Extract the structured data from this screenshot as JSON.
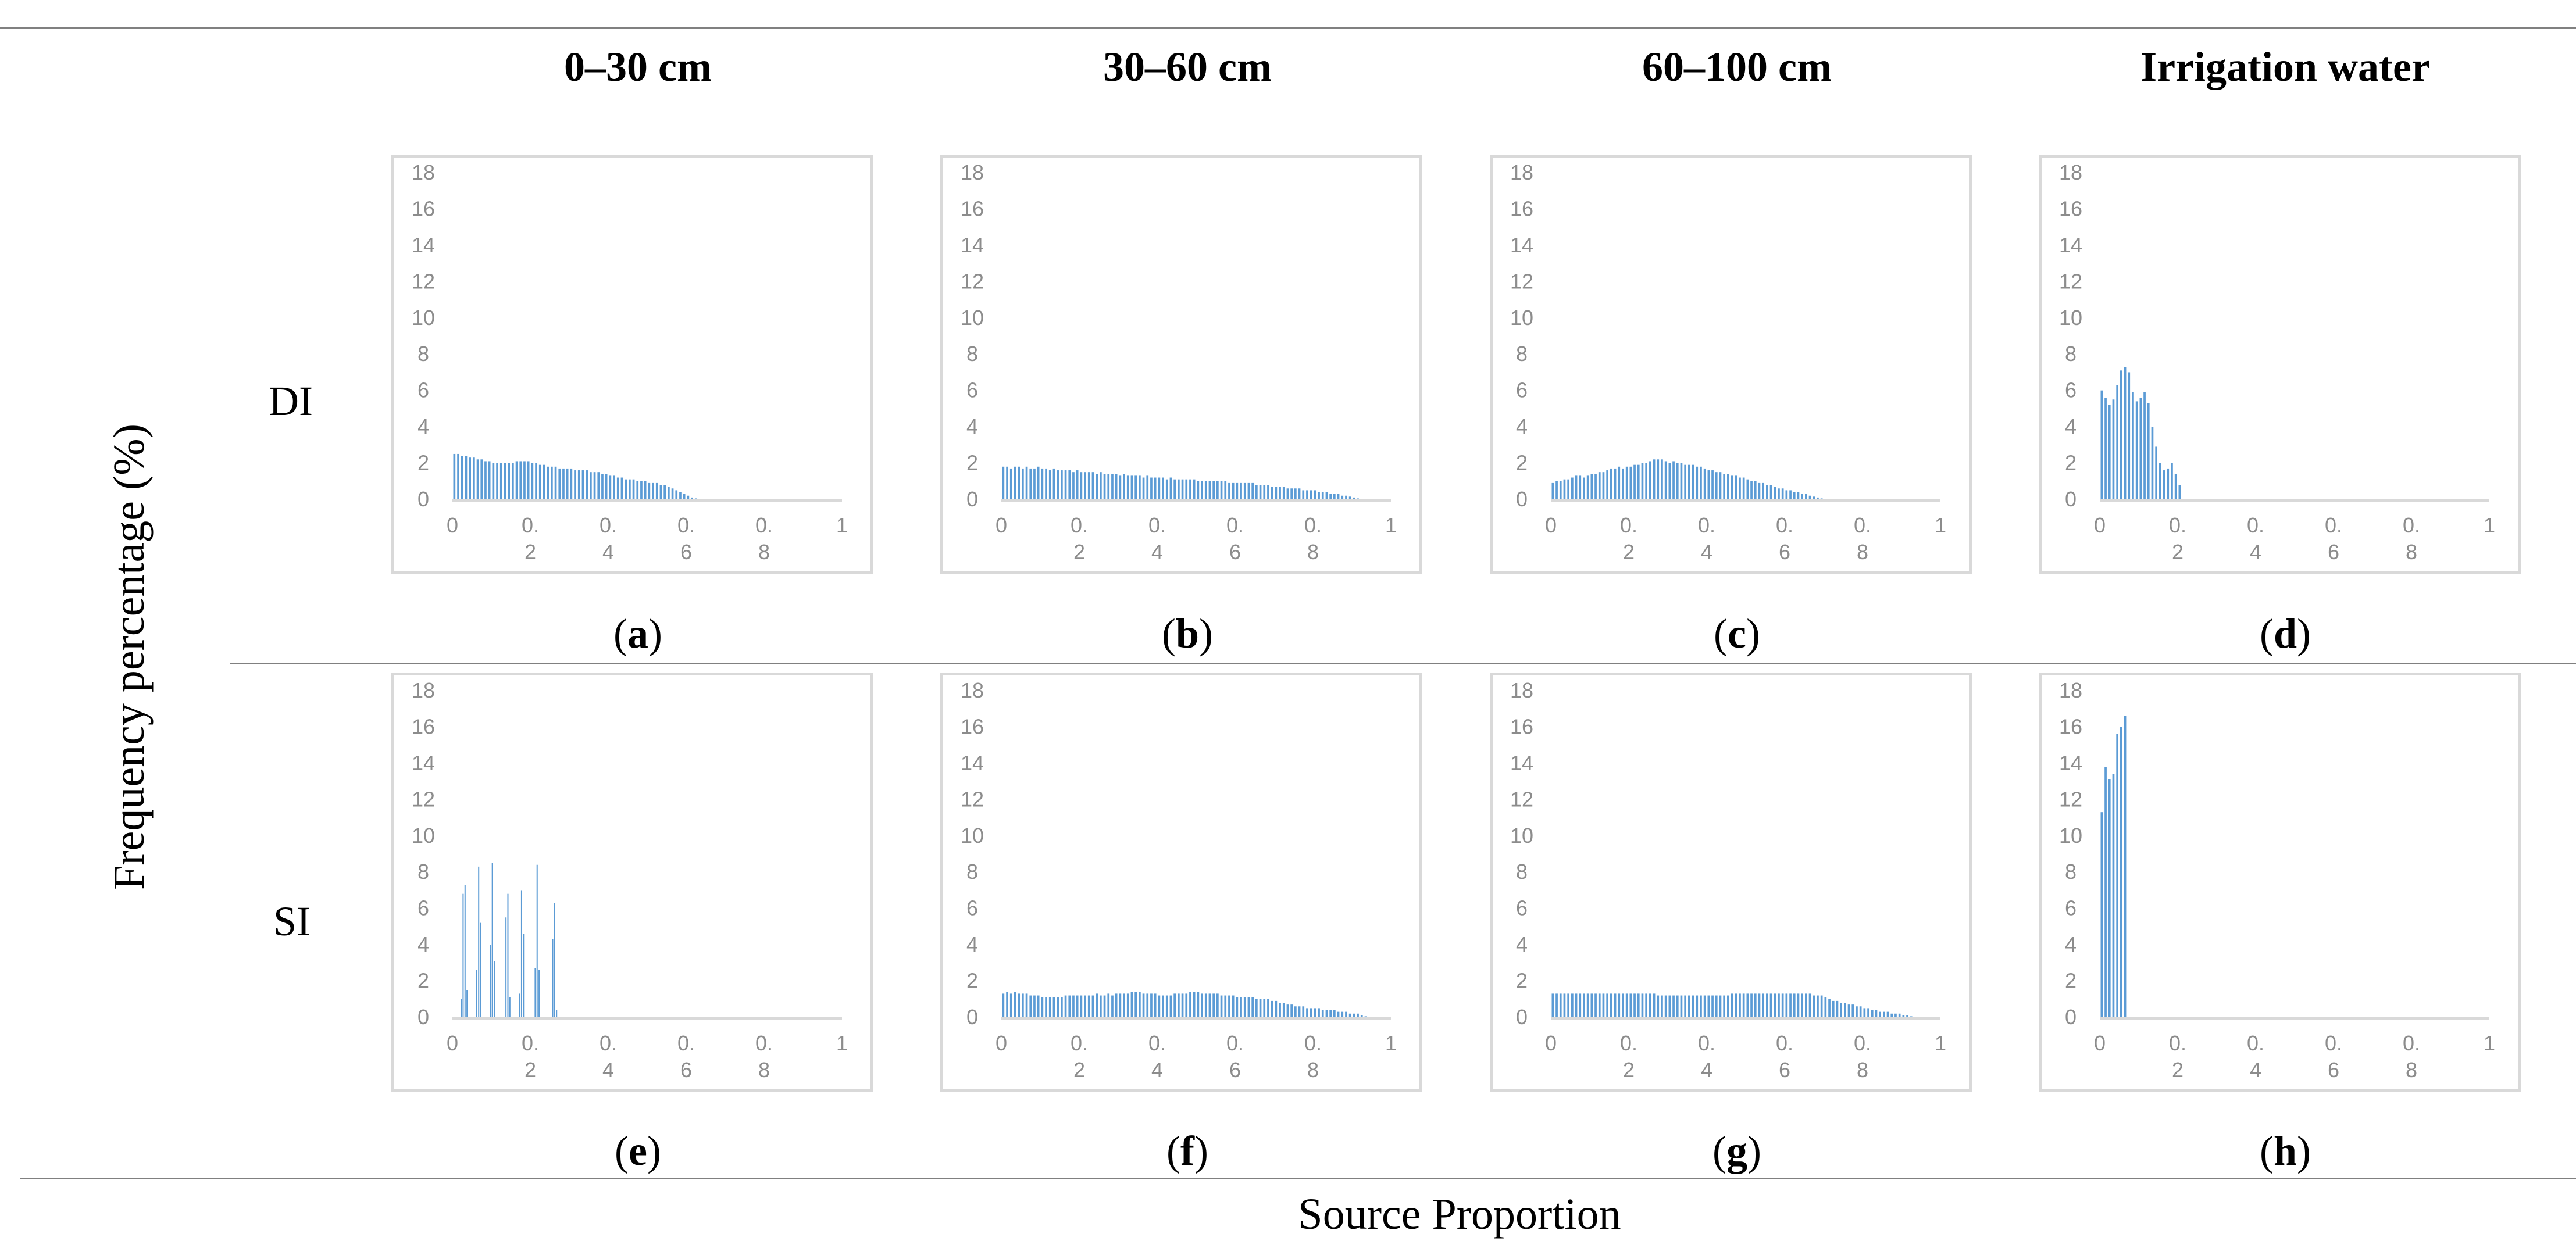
{
  "figure": {
    "y_axis_label": "Frequency percentage (%)",
    "x_axis_label": "Source Proportion",
    "columns": [
      "0–30 cm",
      "30–60 cm",
      "60–100 cm",
      "Irrigation water"
    ],
    "rows": [
      "DI",
      "SI"
    ],
    "bar_color": "#5b9bd5",
    "axis_color": "#d9d9d9",
    "tick_color": "#8c8c8c"
  },
  "chart_data": [
    {
      "type": "bar",
      "panel": "a",
      "row": "DI",
      "column": "0–30 cm",
      "bins": 80,
      "bin_width": 0.01,
      "x_start": 0.005,
      "ylim": [
        0,
        18
      ],
      "yticks": [
        "0",
        "2",
        "4",
        "6",
        "8",
        "10",
        "12",
        "14",
        "16",
        "18"
      ],
      "xlim": [
        0,
        1
      ],
      "xticks": [
        "0",
        "0.\n2",
        "0.\n4",
        "0.\n6",
        "0.\n8",
        "1"
      ],
      "values": [
        2.5,
        2.5,
        2.4,
        2.4,
        2.3,
        2.3,
        2.2,
        2.2,
        2.1,
        2.1,
        2.0,
        2.0,
        2.0,
        2.0,
        2.0,
        2.0,
        2.1,
        2.1,
        2.1,
        2.1,
        2.0,
        2.0,
        1.9,
        1.9,
        1.8,
        1.8,
        1.8,
        1.7,
        1.7,
        1.7,
        1.7,
        1.6,
        1.6,
        1.6,
        1.6,
        1.5,
        1.5,
        1.5,
        1.4,
        1.4,
        1.3,
        1.3,
        1.2,
        1.2,
        1.1,
        1.1,
        1.1,
        1.0,
        1.0,
        1.0,
        0.9,
        0.9,
        0.9,
        0.8,
        0.8,
        0.7,
        0.6,
        0.5,
        0.4,
        0.3,
        0.2,
        0.1,
        0.05,
        0.02,
        0,
        0,
        0,
        0,
        0,
        0,
        0,
        0,
        0,
        0,
        0,
        0,
        0,
        0,
        0,
        0
      ]
    },
    {
      "type": "bar",
      "panel": "b",
      "row": "DI",
      "column": "30–60 cm",
      "bins": 100,
      "bin_width": 0.01,
      "x_start": 0.005,
      "ylim": [
        0,
        18
      ],
      "yticks": [
        "0",
        "2",
        "4",
        "6",
        "8",
        "10",
        "12",
        "14",
        "16",
        "18"
      ],
      "xlim": [
        0,
        1
      ],
      "xticks": [
        "0",
        "0.\n2",
        "0.\n4",
        "0.\n6",
        "0.\n8",
        "1"
      ],
      "values": [
        1.8,
        1.8,
        1.7,
        1.8,
        1.8,
        1.7,
        1.8,
        1.7,
        1.7,
        1.8,
        1.7,
        1.7,
        1.6,
        1.7,
        1.6,
        1.6,
        1.6,
        1.6,
        1.5,
        1.6,
        1.5,
        1.5,
        1.5,
        1.5,
        1.4,
        1.5,
        1.4,
        1.4,
        1.4,
        1.4,
        1.3,
        1.4,
        1.3,
        1.3,
        1.3,
        1.3,
        1.2,
        1.3,
        1.2,
        1.2,
        1.2,
        1.2,
        1.1,
        1.2,
        1.1,
        1.1,
        1.1,
        1.1,
        1.1,
        1.1,
        1.0,
        1.0,
        1.0,
        1.0,
        1.0,
        1.0,
        1.0,
        1.0,
        0.9,
        0.9,
        0.9,
        0.9,
        0.9,
        0.9,
        0.9,
        0.8,
        0.8,
        0.8,
        0.8,
        0.7,
        0.7,
        0.7,
        0.7,
        0.6,
        0.6,
        0.6,
        0.6,
        0.5,
        0.5,
        0.5,
        0.5,
        0.4,
        0.4,
        0.4,
        0.3,
        0.3,
        0.3,
        0.2,
        0.2,
        0.15,
        0.1,
        0.05,
        0,
        0,
        0,
        0,
        0,
        0,
        0,
        0
      ]
    },
    {
      "type": "bar",
      "panel": "c",
      "row": "DI",
      "column": "60–100 cm",
      "bins": 100,
      "bin_width": 0.01,
      "x_start": 0.005,
      "ylim": [
        0,
        18
      ],
      "yticks": [
        "0",
        "2",
        "4",
        "6",
        "8",
        "10",
        "12",
        "14",
        "16",
        "18"
      ],
      "xlim": [
        0,
        1
      ],
      "xticks": [
        "0",
        "0.\n2",
        "0.\n4",
        "0.\n6",
        "0.\n8",
        "1"
      ],
      "values": [
        0.9,
        1.0,
        1.0,
        1.1,
        1.1,
        1.2,
        1.3,
        1.3,
        1.2,
        1.3,
        1.4,
        1.4,
        1.5,
        1.5,
        1.6,
        1.7,
        1.7,
        1.8,
        1.7,
        1.8,
        1.8,
        1.9,
        1.9,
        2.0,
        2.0,
        2.1,
        2.2,
        2.2,
        2.2,
        2.1,
        2.0,
        2.1,
        2.0,
        2.0,
        1.9,
        1.9,
        1.9,
        1.8,
        1.8,
        1.7,
        1.6,
        1.6,
        1.5,
        1.5,
        1.4,
        1.4,
        1.3,
        1.3,
        1.2,
        1.2,
        1.1,
        1.0,
        1.0,
        0.9,
        0.9,
        0.8,
        0.8,
        0.7,
        0.6,
        0.6,
        0.5,
        0.5,
        0.4,
        0.4,
        0.3,
        0.3,
        0.2,
        0.15,
        0.1,
        0.05,
        0.02,
        0,
        0,
        0,
        0,
        0,
        0,
        0,
        0,
        0,
        0,
        0,
        0,
        0,
        0,
        0,
        0,
        0,
        0,
        0,
        0,
        0,
        0,
        0,
        0,
        0,
        0,
        0,
        0,
        0
      ]
    },
    {
      "type": "bar",
      "panel": "d",
      "row": "DI",
      "column": "Irrigation water",
      "bins": 100,
      "bin_width": 0.01,
      "x_start": 0.005,
      "ylim": [
        0,
        18
      ],
      "yticks": [
        "0",
        "2",
        "4",
        "6",
        "8",
        "10",
        "12",
        "14",
        "16",
        "18"
      ],
      "xlim": [
        0,
        1
      ],
      "xticks": [
        "0",
        "0.\n2",
        "0.\n4",
        "0.\n6",
        "0.\n8",
        "1"
      ],
      "values": [
        6.0,
        5.6,
        5.2,
        5.5,
        6.3,
        7.1,
        7.3,
        7.0,
        5.9,
        5.4,
        5.6,
        5.9,
        5.3,
        4.0,
        2.9,
        2.0,
        1.6,
        1.7,
        2.0,
        1.4,
        0.8,
        0,
        0,
        0,
        0,
        0,
        0,
        0,
        0,
        0,
        0,
        0,
        0,
        0,
        0,
        0,
        0,
        0,
        0,
        0,
        0,
        0,
        0,
        0,
        0,
        0,
        0,
        0,
        0,
        0,
        0,
        0,
        0,
        0,
        0,
        0,
        0,
        0,
        0,
        0,
        0,
        0,
        0,
        0,
        0,
        0,
        0,
        0,
        0,
        0,
        0,
        0,
        0,
        0,
        0,
        0,
        0,
        0,
        0,
        0,
        0,
        0,
        0,
        0,
        0,
        0,
        0,
        0,
        0,
        0,
        0,
        0,
        0,
        0,
        0,
        0,
        0,
        0,
        0,
        0
      ]
    },
    {
      "type": "bar",
      "panel": "e",
      "row": "SI",
      "column": "0–30 cm",
      "bins": 80,
      "bin_width": 0.005,
      "x_start": 0.0025,
      "ylim": [
        0,
        18
      ],
      "yticks": [
        "0",
        "2",
        "4",
        "6",
        "8",
        "10",
        "12",
        "14",
        "16",
        "18"
      ],
      "xlim": [
        0,
        1
      ],
      "xticks": [
        "0",
        "0.\n2",
        "0.\n4",
        "0.\n6",
        "0.\n8",
        "1"
      ],
      "values": [
        0,
        0,
        0,
        0,
        1.0,
        6.8,
        7.3,
        1.5,
        0,
        0,
        0,
        0,
        2.6,
        8.3,
        5.2,
        0,
        0,
        0,
        0,
        4.0,
        8.5,
        3.1,
        0,
        0,
        0,
        0,
        0,
        5.5,
        6.8,
        1.1,
        0,
        0,
        0,
        0,
        1.3,
        7.0,
        4.6,
        0,
        0,
        0,
        0,
        0,
        2.7,
        8.4,
        2.6,
        0,
        0,
        0,
        0,
        0,
        0,
        4.3,
        6.3,
        0.4,
        0,
        0,
        0,
        0,
        0,
        0,
        0,
        0,
        0,
        0,
        0,
        0,
        0,
        0,
        0,
        0,
        0,
        0,
        0,
        0,
        0,
        0,
        0,
        0,
        0,
        0
      ]
    },
    {
      "type": "bar",
      "panel": "f",
      "row": "SI",
      "column": "30–60 cm",
      "bins": 100,
      "bin_width": 0.01,
      "x_start": 0.005,
      "ylim": [
        0,
        18
      ],
      "yticks": [
        "0",
        "2",
        "4",
        "6",
        "8",
        "10",
        "12",
        "14",
        "16",
        "18"
      ],
      "xlim": [
        0,
        1
      ],
      "xticks": [
        "0",
        "0.\n2",
        "0.\n4",
        "0.\n6",
        "0.\n8",
        "1"
      ],
      "values": [
        1.3,
        1.4,
        1.3,
        1.4,
        1.3,
        1.3,
        1.3,
        1.2,
        1.2,
        1.2,
        1.1,
        1.1,
        1.1,
        1.1,
        1.1,
        1.1,
        1.2,
        1.2,
        1.2,
        1.2,
        1.2,
        1.2,
        1.2,
        1.2,
        1.3,
        1.2,
        1.2,
        1.3,
        1.2,
        1.3,
        1.3,
        1.3,
        1.3,
        1.4,
        1.4,
        1.4,
        1.3,
        1.3,
        1.3,
        1.3,
        1.2,
        1.2,
        1.2,
        1.2,
        1.3,
        1.3,
        1.3,
        1.3,
        1.4,
        1.4,
        1.4,
        1.3,
        1.3,
        1.3,
        1.3,
        1.3,
        1.2,
        1.2,
        1.2,
        1.2,
        1.1,
        1.1,
        1.1,
        1.1,
        1.1,
        1.0,
        1.0,
        1.0,
        1.0,
        0.9,
        0.9,
        0.8,
        0.8,
        0.7,
        0.7,
        0.6,
        0.6,
        0.6,
        0.5,
        0.5,
        0.5,
        0.5,
        0.4,
        0.4,
        0.4,
        0.4,
        0.3,
        0.3,
        0.3,
        0.2,
        0.2,
        0.2,
        0.1,
        0.05,
        0,
        0,
        0,
        0,
        0,
        0
      ]
    },
    {
      "type": "bar",
      "panel": "g",
      "row": "SI",
      "column": "60–100 cm",
      "bins": 100,
      "bin_width": 0.01,
      "x_start": 0.005,
      "ylim": [
        0,
        18
      ],
      "yticks": [
        "0",
        "2",
        "4",
        "6",
        "8",
        "10",
        "12",
        "14",
        "16",
        "18"
      ],
      "xlim": [
        0,
        1
      ],
      "xticks": [
        "0",
        "0.\n2",
        "0.\n4",
        "0.\n6",
        "0.\n8",
        "1"
      ],
      "values": [
        1.3,
        1.3,
        1.3,
        1.3,
        1.3,
        1.3,
        1.3,
        1.3,
        1.3,
        1.3,
        1.3,
        1.3,
        1.3,
        1.3,
        1.3,
        1.3,
        1.3,
        1.3,
        1.3,
        1.3,
        1.3,
        1.3,
        1.3,
        1.3,
        1.3,
        1.3,
        1.3,
        1.2,
        1.2,
        1.2,
        1.2,
        1.2,
        1.2,
        1.2,
        1.2,
        1.2,
        1.2,
        1.2,
        1.2,
        1.2,
        1.2,
        1.2,
        1.2,
        1.2,
        1.2,
        1.2,
        1.3,
        1.3,
        1.3,
        1.3,
        1.3,
        1.3,
        1.3,
        1.3,
        1.3,
        1.3,
        1.3,
        1.3,
        1.3,
        1.3,
        1.3,
        1.3,
        1.3,
        1.3,
        1.3,
        1.3,
        1.3,
        1.2,
        1.2,
        1.2,
        1.1,
        1.0,
        0.9,
        0.9,
        0.8,
        0.8,
        0.7,
        0.7,
        0.6,
        0.6,
        0.5,
        0.5,
        0.4,
        0.4,
        0.3,
        0.3,
        0.3,
        0.2,
        0.2,
        0.2,
        0.1,
        0.1,
        0.05,
        0,
        0,
        0,
        0,
        0,
        0,
        0
      ]
    },
    {
      "type": "bar",
      "panel": "h",
      "row": "SI",
      "column": "Irrigation water",
      "bins": 100,
      "bin_width": 0.01,
      "x_start": 0.005,
      "ylim": [
        0,
        18
      ],
      "yticks": [
        "0",
        "2",
        "4",
        "6",
        "8",
        "10",
        "12",
        "14",
        "16",
        "18"
      ],
      "xlim": [
        0,
        1
      ],
      "xticks": [
        "0",
        "0.\n2",
        "0.\n4",
        "0.\n6",
        "0.\n8",
        "1"
      ],
      "values": [
        11.3,
        13.8,
        13.1,
        13.4,
        15.6,
        16.0,
        16.6,
        0,
        0,
        0,
        0,
        0,
        0,
        0,
        0,
        0,
        0,
        0,
        0,
        0,
        0,
        0,
        0,
        0,
        0,
        0,
        0,
        0,
        0,
        0,
        0,
        0,
        0,
        0,
        0,
        0,
        0,
        0,
        0,
        0,
        0,
        0,
        0,
        0,
        0,
        0,
        0,
        0,
        0,
        0,
        0,
        0,
        0,
        0,
        0,
        0,
        0,
        0,
        0,
        0,
        0,
        0,
        0,
        0,
        0,
        0,
        0,
        0,
        0,
        0,
        0,
        0,
        0,
        0,
        0,
        0,
        0,
        0,
        0,
        0,
        0,
        0,
        0,
        0,
        0,
        0,
        0,
        0,
        0,
        0,
        0,
        0,
        0,
        0,
        0,
        0,
        0,
        0,
        0,
        0
      ]
    }
  ]
}
